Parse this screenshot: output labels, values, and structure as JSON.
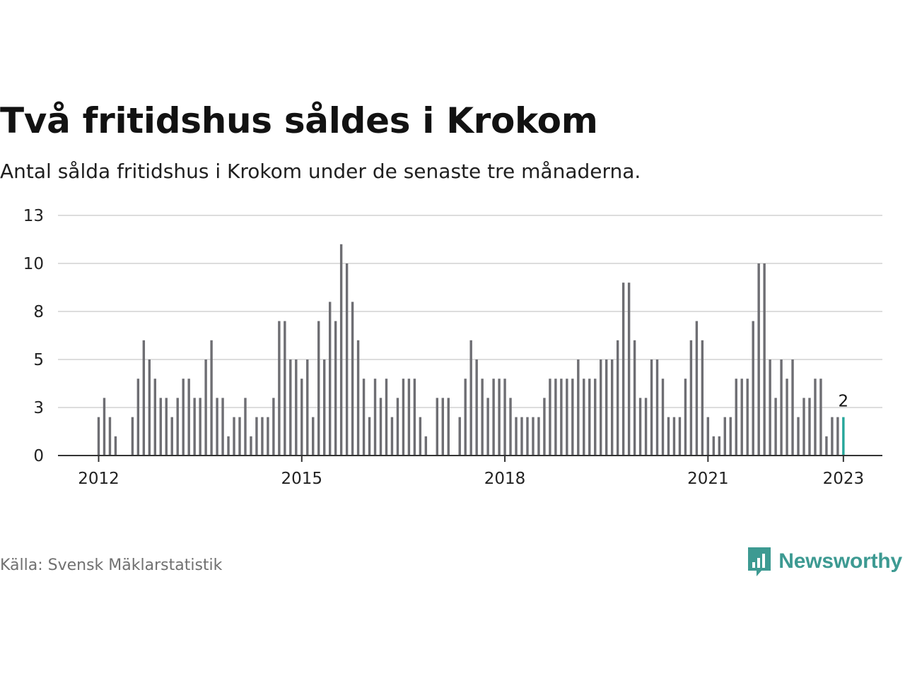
{
  "header": {
    "title": "Två fritidshus såldes i Krokom",
    "subtitle": "Antal sålda fritidshus i Krokom under de senaste tre månaderna."
  },
  "footer": {
    "source": "Källa: Svensk Mäklarstatistik",
    "brand": "Newsworthy"
  },
  "colors": {
    "bar": "#6e6e73",
    "highlight": "#26a69a",
    "grid": "#dddddd",
    "brand": "#3d9a92"
  },
  "chart_data": {
    "type": "bar",
    "title": "Två fritidshus såldes i Krokom",
    "xlabel": "",
    "ylabel": "",
    "ylim": [
      0,
      12.5
    ],
    "y_ticks": [
      {
        "value": 0,
        "label": "0"
      },
      {
        "value": 2.5,
        "label": "3"
      },
      {
        "value": 5,
        "label": "5"
      },
      {
        "value": 7.5,
        "label": "8"
      },
      {
        "value": 10,
        "label": "10"
      },
      {
        "value": 12.5,
        "label": "13"
      }
    ],
    "x_ticks": [
      {
        "value": "2012-01",
        "label": "2012"
      },
      {
        "value": "2015-01",
        "label": "2015"
      },
      {
        "value": "2018-01",
        "label": "2018"
      },
      {
        "value": "2021-01",
        "label": "2021"
      },
      {
        "value": "2023-01",
        "label": "2023"
      }
    ],
    "grid": true,
    "x_start": "2012-01",
    "x": [
      "2012-01",
      "2012-02",
      "2012-03",
      "2012-04",
      "2012-05",
      "2012-06",
      "2012-07",
      "2012-08",
      "2012-09",
      "2012-10",
      "2012-11",
      "2012-12",
      "2013-01",
      "2013-02",
      "2013-03",
      "2013-04",
      "2013-05",
      "2013-06",
      "2013-07",
      "2013-08",
      "2013-09",
      "2013-10",
      "2013-11",
      "2013-12",
      "2014-01",
      "2014-02",
      "2014-03",
      "2014-04",
      "2014-05",
      "2014-06",
      "2014-07",
      "2014-08",
      "2014-09",
      "2014-10",
      "2014-11",
      "2014-12",
      "2015-01",
      "2015-02",
      "2015-03",
      "2015-04",
      "2015-05",
      "2015-06",
      "2015-07",
      "2015-08",
      "2015-09",
      "2015-10",
      "2015-11",
      "2015-12",
      "2016-01",
      "2016-02",
      "2016-03",
      "2016-04",
      "2016-05",
      "2016-06",
      "2016-07",
      "2016-08",
      "2016-09",
      "2016-10",
      "2016-11",
      "2016-12",
      "2017-01",
      "2017-02",
      "2017-03",
      "2017-04",
      "2017-05",
      "2017-06",
      "2017-07",
      "2017-08",
      "2017-09",
      "2017-10",
      "2017-11",
      "2017-12",
      "2018-01",
      "2018-02",
      "2018-03",
      "2018-04",
      "2018-05",
      "2018-06",
      "2018-07",
      "2018-08",
      "2018-09",
      "2018-10",
      "2018-11",
      "2018-12",
      "2019-01",
      "2019-02",
      "2019-03",
      "2019-04",
      "2019-05",
      "2019-06",
      "2019-07",
      "2019-08",
      "2019-09",
      "2019-10",
      "2019-11",
      "2019-12",
      "2020-01",
      "2020-02",
      "2020-03",
      "2020-04",
      "2020-05",
      "2020-06",
      "2020-07",
      "2020-08",
      "2020-09",
      "2020-10",
      "2020-11",
      "2020-12",
      "2021-01",
      "2021-02",
      "2021-03",
      "2021-04",
      "2021-05",
      "2021-06",
      "2021-07",
      "2021-08",
      "2021-09",
      "2021-10",
      "2021-11",
      "2021-12",
      "2022-01",
      "2022-02",
      "2022-03",
      "2022-04",
      "2022-05",
      "2022-06",
      "2022-07",
      "2022-08",
      "2022-09",
      "2022-10",
      "2022-11",
      "2022-12",
      "2023-01"
    ],
    "values": [
      2,
      3,
      2,
      1,
      0,
      0,
      2,
      4,
      6,
      5,
      4,
      3,
      3,
      2,
      3,
      4,
      4,
      3,
      3,
      5,
      6,
      3,
      3,
      1,
      2,
      2,
      3,
      1,
      2,
      2,
      2,
      3,
      7,
      7,
      5,
      5,
      4,
      5,
      2,
      7,
      5,
      8,
      7,
      11,
      10,
      8,
      6,
      4,
      2,
      4,
      3,
      4,
      2,
      3,
      4,
      4,
      4,
      2,
      1,
      0,
      3,
      3,
      3,
      0,
      2,
      4,
      6,
      5,
      4,
      3,
      4,
      4,
      4,
      3,
      2,
      2,
      2,
      2,
      2,
      3,
      4,
      4,
      4,
      4,
      4,
      5,
      4,
      4,
      4,
      5,
      5,
      5,
      6,
      9,
      9,
      6,
      3,
      3,
      5,
      5,
      4,
      2,
      2,
      2,
      4,
      6,
      7,
      6,
      2,
      1,
      1,
      2,
      2,
      4,
      4,
      4,
      7,
      10,
      10,
      5,
      3,
      5,
      4,
      5,
      2,
      3,
      3,
      4,
      4,
      1,
      2,
      2,
      2
    ],
    "highlight_last": true,
    "annotation": {
      "index": 132,
      "label": "2"
    }
  }
}
